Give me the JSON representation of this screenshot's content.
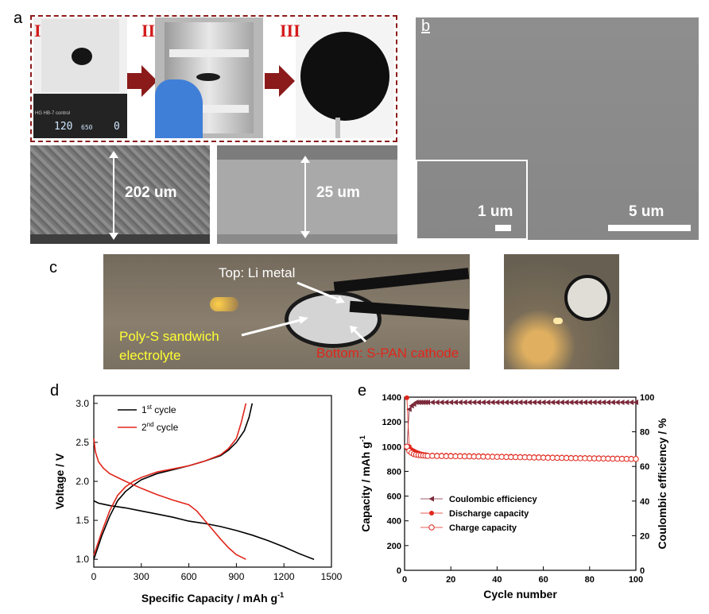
{
  "panel_labels": {
    "a": "a",
    "b": "b",
    "c": "c",
    "d": "d",
    "e": "e"
  },
  "panel_a": {
    "steps": [
      "I",
      "II",
      "III"
    ],
    "display_readout": {
      "left": "120",
      "mid": "650",
      "right": "0"
    },
    "display_caption": "HG HB-7 control",
    "sem_thickness_left": "202 um",
    "sem_thickness_right": "25 um"
  },
  "panel_b": {
    "inset_scale": "1 um",
    "main_scale": "5 um"
  },
  "panel_c": {
    "top_label": "Top: Li metal",
    "left_label_line1": "Poly-S sandwich",
    "left_label_line2": "electrolyte",
    "bottom_label": "Bottom: S-PAN cathode",
    "colors": {
      "top": "#ffffff",
      "left": "#ffff33",
      "bottom": "#e0261b"
    }
  },
  "chart_data": [
    {
      "type": "line",
      "panel": "d",
      "xlabel": "Specific Capacity / mAh g",
      "xlabel_sup": "-1",
      "ylabel": "Voltage / V",
      "xlim": [
        0,
        1500
      ],
      "ylim": [
        0.9,
        3.1
      ],
      "xticks": [
        "0",
        "300",
        "600",
        "900",
        "1200",
        "1500"
      ],
      "yticks": [
        "1.0",
        "1.5",
        "2.0",
        "2.5",
        "3.0"
      ],
      "legend": [
        {
          "base": "1",
          "sup": "st",
          "text": " cycle",
          "color": "#000000"
        },
        {
          "base": "2",
          "sup": "nd",
          "text": " cycle",
          "color": "#e0261b"
        }
      ],
      "series": [
        {
          "name": "1st cycle discharge",
          "color": "#000000",
          "x": [
            0,
            30,
            100,
            200,
            300,
            400,
            500,
            600,
            700,
            800,
            900,
            1000,
            1100,
            1200,
            1300,
            1390
          ],
          "y": [
            1.75,
            1.72,
            1.69,
            1.66,
            1.62,
            1.58,
            1.54,
            1.49,
            1.46,
            1.42,
            1.37,
            1.31,
            1.24,
            1.16,
            1.07,
            1.0
          ]
        },
        {
          "name": "1st cycle charge",
          "color": "#000000",
          "x": [
            0,
            50,
            100,
            150,
            200,
            250,
            300,
            400,
            500,
            600,
            700,
            800,
            850,
            900,
            950,
            980,
            1000
          ],
          "y": [
            1.0,
            1.3,
            1.55,
            1.75,
            1.87,
            1.95,
            2.02,
            2.1,
            2.15,
            2.2,
            2.26,
            2.33,
            2.4,
            2.5,
            2.65,
            2.82,
            3.0
          ]
        },
        {
          "name": "2nd cycle discharge",
          "color": "#e0261b",
          "x": [
            0,
            10,
            30,
            60,
            100,
            150,
            200,
            300,
            400,
            500,
            600,
            650,
            700,
            750,
            800,
            850,
            900,
            960
          ],
          "y": [
            2.55,
            2.38,
            2.25,
            2.17,
            2.1,
            2.05,
            2.0,
            1.91,
            1.83,
            1.76,
            1.7,
            1.62,
            1.5,
            1.38,
            1.26,
            1.15,
            1.06,
            1.0
          ]
        },
        {
          "name": "2nd cycle charge",
          "color": "#e0261b",
          "x": [
            0,
            50,
            100,
            150,
            200,
            250,
            300,
            400,
            500,
            600,
            700,
            800,
            850,
            900,
            930,
            960
          ],
          "y": [
            1.05,
            1.35,
            1.62,
            1.82,
            1.93,
            2.0,
            2.05,
            2.12,
            2.16,
            2.2,
            2.26,
            2.34,
            2.42,
            2.55,
            2.75,
            3.0
          ]
        }
      ]
    },
    {
      "type": "scatter",
      "panel": "e",
      "xlabel": "Cycle number",
      "ylabel_left": "Capacity / mAh g",
      "ylabel_left_sup": "-1",
      "ylabel_right": "Coulombic efficiency / %",
      "xlim": [
        0,
        100
      ],
      "ylim_left": [
        0,
        1400
      ],
      "ylim_right": [
        0,
        100
      ],
      "xticks": [
        "0",
        "20",
        "40",
        "60",
        "80",
        "100"
      ],
      "yticks_left": [
        "0",
        "200",
        "400",
        "600",
        "800",
        "1000",
        "1200",
        "1400"
      ],
      "yticks_right": [
        "0",
        "20",
        "40",
        "60",
        "80",
        "100"
      ],
      "legend": [
        "Coulombic efficiency",
        "Discharge capacity",
        "Charge capacity"
      ],
      "series": [
        {
          "name": "Coulombic efficiency",
          "axis": "right",
          "color": "#7b2a3b",
          "marker": "triangle-left",
          "x": [
            1,
            2,
            3,
            4,
            5,
            6,
            7,
            8,
            9,
            10,
            12,
            14,
            16,
            18,
            20,
            22,
            24,
            26,
            28,
            30,
            32,
            34,
            36,
            38,
            40,
            42,
            44,
            46,
            48,
            50,
            52,
            54,
            56,
            58,
            60,
            62,
            64,
            66,
            68,
            70,
            72,
            74,
            76,
            78,
            80,
            82,
            84,
            86,
            88,
            90,
            92,
            94,
            96,
            98,
            100
          ],
          "y": [
            70,
            93,
            95,
            96,
            97,
            97,
            97,
            97,
            97,
            97,
            97,
            97,
            97,
            97,
            97,
            97,
            97,
            97,
            97,
            97,
            97,
            97,
            97,
            97,
            97,
            97,
            97,
            97,
            97,
            97,
            97,
            97,
            97,
            97,
            97,
            97,
            97,
            97,
            97,
            97,
            97,
            97,
            97,
            97,
            97,
            97,
            97,
            97,
            97,
            97,
            97,
            97,
            97,
            97,
            97
          ]
        },
        {
          "name": "Discharge capacity",
          "axis": "left",
          "color": "#e0261b",
          "marker": "circle-filled",
          "x": [
            1,
            2,
            3,
            4,
            5,
            6,
            7,
            8,
            9,
            10,
            12,
            14,
            16,
            18,
            20,
            22,
            24,
            26,
            28,
            30,
            32,
            34,
            36,
            38,
            40,
            42,
            44,
            46,
            48,
            50,
            52,
            54,
            56,
            58,
            60,
            62,
            64,
            66,
            68,
            70,
            72,
            74,
            76,
            78,
            80,
            82,
            84,
            86,
            88,
            90,
            92,
            94,
            96,
            98,
            100
          ],
          "y": [
            1395,
            1000,
            975,
            965,
            955,
            948,
            942,
            938,
            935,
            932,
            932,
            931,
            931,
            930,
            930,
            929,
            929,
            928,
            928,
            927,
            927,
            926,
            925,
            924,
            923,
            923,
            922,
            922,
            921,
            920,
            920,
            919,
            918,
            918,
            917,
            917,
            916,
            915,
            915,
            914,
            913,
            913,
            912,
            912,
            911,
            910,
            910,
            909,
            909,
            908,
            908,
            907,
            906,
            906,
            905
          ]
        },
        {
          "name": "Charge capacity",
          "axis": "left",
          "color": "#e0261b",
          "marker": "circle-open",
          "x": [
            1,
            2,
            3,
            4,
            5,
            6,
            7,
            8,
            9,
            10,
            12,
            14,
            16,
            18,
            20,
            22,
            24,
            26,
            28,
            30,
            32,
            34,
            36,
            38,
            40,
            42,
            44,
            46,
            48,
            50,
            52,
            54,
            56,
            58,
            60,
            62,
            64,
            66,
            68,
            70,
            72,
            74,
            76,
            78,
            80,
            82,
            84,
            86,
            88,
            90,
            92,
            94,
            96,
            98,
            100
          ],
          "y": [
            1000,
            965,
            950,
            940,
            935,
            932,
            930,
            928,
            926,
            925,
            925,
            924,
            924,
            923,
            923,
            922,
            922,
            921,
            921,
            920,
            920,
            919,
            918,
            918,
            917,
            917,
            916,
            915,
            915,
            914,
            914,
            913,
            912,
            912,
            911,
            910,
            910,
            909,
            909,
            908,
            907,
            907,
            906,
            906,
            905,
            905,
            904,
            904,
            903,
            902,
            902,
            901,
            901,
            900,
            900
          ]
        }
      ]
    }
  ]
}
